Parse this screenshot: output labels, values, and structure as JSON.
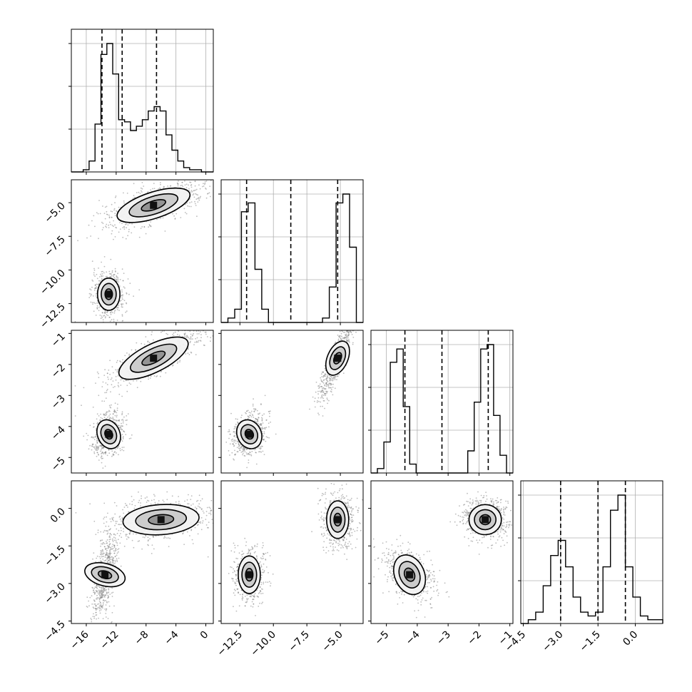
{
  "chart_data": {
    "type": "corner",
    "title": "",
    "parameters": [
      {
        "label": "",
        "range": [
          -18,
          1
        ],
        "ticks": [
          -16,
          -12,
          -8,
          -4,
          0
        ],
        "tick_labels": [
          "−16",
          "−12",
          "−8",
          "−4",
          "0"
        ],
        "quantiles": [
          -13.9,
          -11.2,
          -6.6
        ]
      },
      {
        "label": "",
        "range": [
          -13.9,
          -3.3
        ],
        "ticks": [
          -12.5,
          -10.0,
          -7.5,
          -5.0
        ],
        "tick_labels": [
          "−12.5",
          "−10.0",
          "−7.5",
          "−5.0"
        ],
        "quantiles": [
          -12.0,
          -8.7,
          -5.2
        ]
      },
      {
        "label": "",
        "range": [
          -5.5,
          -0.9
        ],
        "ticks": [
          -5,
          -4,
          -3,
          -2,
          -1
        ],
        "tick_labels": [
          "−5",
          "−4",
          "−3",
          "−2",
          "−1"
        ],
        "quantiles": [
          -4.4,
          -3.2,
          -1.7
        ]
      },
      {
        "label": "",
        "range": [
          -4.6,
          1.1
        ],
        "ticks": [
          -4.5,
          -3.0,
          -1.5,
          0.0
        ],
        "tick_labels": [
          "−4.5",
          "−3.0",
          "−1.5",
          "0.0"
        ],
        "quantiles": [
          -3.0,
          -1.5,
          -0.4
        ]
      }
    ],
    "histograms": [
      {
        "bin_range": [
          -18,
          1
        ],
        "counts": [
          0,
          0,
          1,
          5,
          22,
          54,
          59,
          45,
          24,
          23,
          19,
          21,
          24,
          28,
          30,
          28,
          17,
          10,
          5,
          2,
          1,
          1,
          0,
          0
        ]
      },
      {
        "bin_range": [
          -13.9,
          -3.3
        ],
        "counts": [
          0,
          1,
          3,
          25,
          27,
          12,
          3,
          0,
          0,
          0,
          0,
          0,
          0,
          0,
          0,
          1,
          8,
          27,
          29,
          17,
          0
        ]
      },
      {
        "bin_range": [
          -5.5,
          -0.9
        ],
        "counts": [
          0,
          1,
          7,
          25,
          28,
          15,
          2,
          0,
          0,
          0,
          0,
          0,
          0,
          0,
          0,
          5,
          16,
          28,
          29,
          13,
          4,
          0
        ]
      },
      {
        "bin_range": [
          -4.6,
          1.1
        ],
        "counts": [
          0,
          1,
          3,
          10,
          18,
          22,
          15,
          7,
          3,
          2,
          3,
          15,
          30,
          34,
          15,
          7,
          2,
          1,
          1
        ]
      }
    ],
    "modes": [
      {
        "weight": 0.5,
        "mean": [
          -13.0,
          -11.8,
          -4.25,
          -2.65
        ]
      },
      {
        "weight": 0.5,
        "mean": [
          -7.0,
          -5.2,
          -1.8,
          -0.45
        ]
      }
    ],
    "contour_pairs": [
      {
        "x": 0,
        "y": 1,
        "clusters": [
          {
            "center": [
              -13.0,
              -11.8
            ],
            "sx": 1.0,
            "sy": 0.8,
            "angle": 0,
            "levels": [
              0.5,
              1.0,
              1.5
            ]
          },
          {
            "center": [
              -7.0,
              -5.2
            ],
            "sx": 3.4,
            "sy": 0.65,
            "angle": 0.18,
            "levels": [
              0.5,
              1.0,
              1.5
            ]
          }
        ]
      },
      {
        "x": 0,
        "y": 2,
        "clusters": [
          {
            "center": [
              -13.0,
              -4.25
            ],
            "sx": 1.0,
            "sy": 0.32,
            "angle": 0.1,
            "levels": [
              0.5,
              1.0,
              1.5
            ]
          },
          {
            "center": [
              -7.0,
              -1.8
            ],
            "sx": 3.4,
            "sy": 0.3,
            "angle": 0.12,
            "levels": [
              0.5,
              1.0,
              1.5
            ]
          }
        ]
      },
      {
        "x": 0,
        "y": 3,
        "clusters": [
          {
            "center": [
              -13.5,
              -2.65
            ],
            "sx": 1.0,
            "sy": 0.55,
            "angle": 0.85,
            "levels": [
              0.5,
              1.0,
              1.5
            ]
          },
          {
            "center": [
              -6.0,
              -0.45
            ],
            "sx": 3.4,
            "sy": 0.4,
            "angle": 0.02,
            "levels": [
              0.5,
              1.0,
              1.5
            ]
          }
        ]
      },
      {
        "x": 1,
        "y": 2,
        "clusters": [
          {
            "center": [
              -11.8,
              -4.25
            ],
            "sx": 0.6,
            "sy": 0.32,
            "angle": 0.2,
            "levels": [
              0.5,
              1.0,
              1.5
            ]
          },
          {
            "center": [
              -5.2,
              -1.8
            ],
            "sx": 0.9,
            "sy": 0.22,
            "angle": 0.78,
            "levels": [
              0.5,
              1.0,
              1.5
            ]
          }
        ]
      },
      {
        "x": 1,
        "y": 3,
        "clusters": [
          {
            "center": [
              -11.8,
              -2.65
            ],
            "sx": 0.55,
            "sy": 0.5,
            "angle": 0,
            "levels": [
              0.5,
              1.0,
              1.5
            ]
          },
          {
            "center": [
              -5.2,
              -0.45
            ],
            "sx": 0.55,
            "sy": 0.5,
            "angle": 0,
            "levels": [
              0.5,
              1.0,
              1.5
            ]
          }
        ]
      },
      {
        "x": 2,
        "y": 3,
        "clusters": [
          {
            "center": [
              -4.25,
              -2.65
            ],
            "sx": 0.32,
            "sy": 0.55,
            "angle": 0.5,
            "levels": [
              0.5,
              1.0,
              1.5
            ]
          },
          {
            "center": [
              -1.8,
              -0.45
            ],
            "sx": 0.35,
            "sy": 0.4,
            "angle": 0.05,
            "levels": [
              0.5,
              1.0,
              1.5
            ]
          }
        ]
      }
    ],
    "grid": true,
    "legend": "none"
  }
}
